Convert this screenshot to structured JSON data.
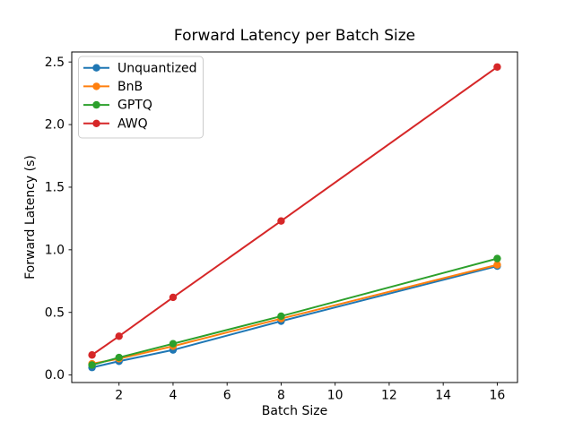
{
  "chart_data": {
    "type": "line",
    "title": "Forward Latency per Batch Size",
    "xlabel": "Batch Size",
    "ylabel": "Forward Latency (s)",
    "x": [
      1,
      2,
      4,
      8,
      16
    ],
    "series": [
      {
        "name": "Unquantized",
        "color": "#1f77b4",
        "values": [
          0.06,
          0.11,
          0.2,
          0.43,
          0.87
        ]
      },
      {
        "name": "BnB",
        "color": "#ff7f0e",
        "values": [
          0.09,
          0.13,
          0.23,
          0.45,
          0.88
        ]
      },
      {
        "name": "GPTQ",
        "color": "#2ca02c",
        "values": [
          0.08,
          0.14,
          0.25,
          0.47,
          0.93
        ]
      },
      {
        "name": "AWQ",
        "color": "#d62728",
        "values": [
          0.16,
          0.31,
          0.62,
          1.23,
          2.46
        ]
      }
    ],
    "xlim": [
      0.25,
      16.75
    ],
    "ylim": [
      -0.06,
      2.58
    ],
    "xticks": [
      2,
      4,
      6,
      8,
      10,
      12,
      14,
      16
    ],
    "xtick_labels": [
      "2",
      "4",
      "6",
      "8",
      "10",
      "12",
      "14",
      "16"
    ],
    "yticks": [
      0.0,
      0.5,
      1.0,
      1.5,
      2.0,
      2.5
    ],
    "ytick_labels": [
      "0.0",
      "0.5",
      "1.0",
      "1.5",
      "2.0",
      "2.5"
    ],
    "legend": {
      "position": "upper left",
      "entries": [
        "Unquantized",
        "BnB",
        "GPTQ",
        "AWQ"
      ],
      "border_color": "#cccccc",
      "background": "#ffffff"
    },
    "grid": false,
    "marker": "circle",
    "background": "#ffffff",
    "spine_color": "#000000",
    "text_color": "#000000"
  }
}
